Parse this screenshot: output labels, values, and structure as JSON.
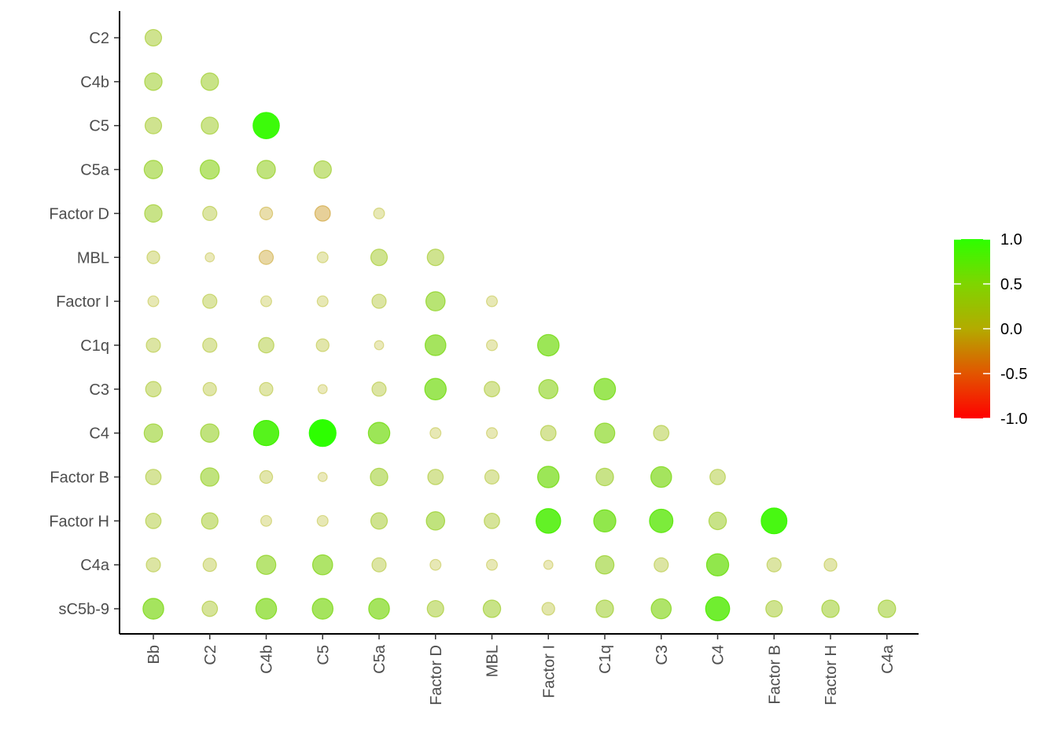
{
  "chart_data": {
    "type": "scatter",
    "subtype": "correlation-matrix-lower-triangle",
    "title": "",
    "xlabel": "",
    "ylabel": "",
    "x_categories": [
      "Bb",
      "C2",
      "C4b",
      "C5",
      "C5a",
      "Factor D",
      "MBL",
      "Factor I",
      "C1q",
      "C3",
      "C4",
      "Factor B",
      "Factor H",
      "C4a"
    ],
    "y_categories": [
      "C2",
      "C4b",
      "C5",
      "C5a",
      "Factor D",
      "MBL",
      "Factor I",
      "C1q",
      "C3",
      "C4",
      "Factor B",
      "Factor H",
      "C4a",
      "sC5b-9"
    ],
    "correlations": [
      [
        0.25
      ],
      [
        0.3,
        0.3
      ],
      [
        0.25,
        0.28,
        0.95
      ],
      [
        0.35,
        0.4,
        0.35,
        0.3
      ],
      [
        0.3,
        0.15,
        -0.1,
        -0.2,
        0.05
      ],
      [
        0.1,
        0.02,
        -0.15,
        0.05,
        0.25,
        0.25
      ],
      [
        0.05,
        0.15,
        0.05,
        0.05,
        0.15,
        0.4,
        0.05
      ],
      [
        0.15,
        0.15,
        0.2,
        0.1,
        0.02,
        0.5,
        0.05,
        0.55
      ],
      [
        0.2,
        0.12,
        0.12,
        0.02,
        0.15,
        0.55,
        0.2,
        0.4,
        0.55
      ],
      [
        0.35,
        0.35,
        0.85,
        1.0,
        0.55,
        0.05,
        0.05,
        0.2,
        0.45,
        0.2
      ],
      [
        0.2,
        0.35,
        0.1,
        0.02,
        0.3,
        0.2,
        0.15,
        0.55,
        0.3,
        0.5,
        0.2
      ],
      [
        0.2,
        0.25,
        0.05,
        0.05,
        0.25,
        0.35,
        0.2,
        0.8,
        0.6,
        0.7,
        0.3,
        0.9
      ],
      [
        0.15,
        0.12,
        0.4,
        0.45,
        0.15,
        0.05,
        0.05,
        0.02,
        0.35,
        0.15,
        0.6,
        0.15,
        0.1
      ],
      [
        0.5,
        0.2,
        0.5,
        0.5,
        0.5,
        0.25,
        0.3,
        0.1,
        0.3,
        0.45,
        0.75,
        0.25,
        0.3,
        0.3
      ]
    ],
    "legend": {
      "position": "right",
      "ticks": [
        "1.0",
        "0.5",
        "0.0",
        "-0.5",
        "-1.0"
      ],
      "range": [
        -1,
        1
      ],
      "colors": {
        "low": "#ff0000",
        "mid": "#b3ab00",
        "high": "#2dff00"
      }
    },
    "grid": false
  }
}
